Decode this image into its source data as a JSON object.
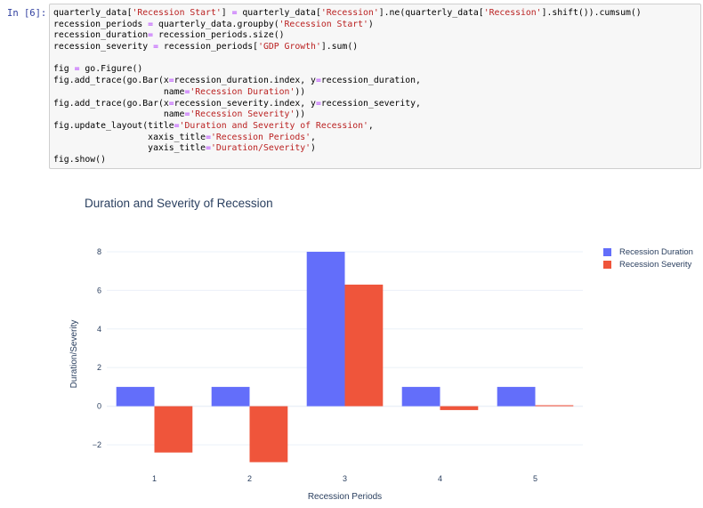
{
  "cell": {
    "prompt": "In [6]:",
    "code_lines": [
      [
        {
          "t": "quarterly_data["
        },
        {
          "t": "'Recession Start'",
          "c": "str"
        },
        {
          "t": "] "
        },
        {
          "t": "=",
          "c": "op"
        },
        {
          "t": " quarterly_data["
        },
        {
          "t": "'Recession'",
          "c": "str"
        },
        {
          "t": "].ne(quarterly_data["
        },
        {
          "t": "'Recession'",
          "c": "str"
        },
        {
          "t": "].shift()).cumsum()"
        }
      ],
      [
        {
          "t": "recession_periods "
        },
        {
          "t": "=",
          "c": "op"
        },
        {
          "t": " quarterly_data.groupby("
        },
        {
          "t": "'Recession Start'",
          "c": "str"
        },
        {
          "t": ")"
        }
      ],
      [
        {
          "t": "recession_duration"
        },
        {
          "t": "=",
          "c": "op"
        },
        {
          "t": " recession_periods.size()"
        }
      ],
      [
        {
          "t": "recession_severity "
        },
        {
          "t": "=",
          "c": "op"
        },
        {
          "t": " recession_periods["
        },
        {
          "t": "'GDP Growth'",
          "c": "str"
        },
        {
          "t": "].sum()"
        }
      ],
      [
        {
          "t": ""
        }
      ],
      [
        {
          "t": "fig "
        },
        {
          "t": "=",
          "c": "op"
        },
        {
          "t": " go.Figure()"
        }
      ],
      [
        {
          "t": "fig.add_trace(go.Bar(x"
        },
        {
          "t": "=",
          "c": "op"
        },
        {
          "t": "recession_duration.index, y"
        },
        {
          "t": "=",
          "c": "op"
        },
        {
          "t": "recession_duration,"
        }
      ],
      [
        {
          "t": "                     name"
        },
        {
          "t": "=",
          "c": "op"
        },
        {
          "t": "'Recession Duration'",
          "c": "str"
        },
        {
          "t": "))"
        }
      ],
      [
        {
          "t": "fig.add_trace(go.Bar(x"
        },
        {
          "t": "=",
          "c": "op"
        },
        {
          "t": "recession_severity.index, y"
        },
        {
          "t": "=",
          "c": "op"
        },
        {
          "t": "recession_severity,"
        }
      ],
      [
        {
          "t": "                     name"
        },
        {
          "t": "=",
          "c": "op"
        },
        {
          "t": "'Recession Severity'",
          "c": "str"
        },
        {
          "t": "))"
        }
      ],
      [
        {
          "t": "fig.update_layout(title"
        },
        {
          "t": "=",
          "c": "op"
        },
        {
          "t": "'Duration and Severity of Recession'",
          "c": "str"
        },
        {
          "t": ","
        }
      ],
      [
        {
          "t": "                  xaxis_title"
        },
        {
          "t": "=",
          "c": "op"
        },
        {
          "t": "'Recession Periods'",
          "c": "str"
        },
        {
          "t": ","
        }
      ],
      [
        {
          "t": "                  yaxis_title"
        },
        {
          "t": "=",
          "c": "op"
        },
        {
          "t": "'Duration/Severity'",
          "c": "str"
        },
        {
          "t": ")"
        }
      ],
      [
        {
          "t": "fig.show()"
        }
      ]
    ]
  },
  "colors": {
    "duration": "#636efa",
    "severity": "#ef553b",
    "grid": "#ebf0f8",
    "zero": "#ebf0f8"
  },
  "chart_data": {
    "type": "bar",
    "title": "Duration and Severity of Recession",
    "xlabel": "Recession Periods",
    "ylabel": "Duration/Severity",
    "categories": [
      "1",
      "2",
      "3",
      "4",
      "5"
    ],
    "series": [
      {
        "name": "Recession Duration",
        "values": [
          1,
          1,
          8,
          1,
          1
        ]
      },
      {
        "name": "Recession Severity",
        "values": [
          -2.4,
          -2.9,
          6.3,
          -0.2,
          0.05
        ]
      }
    ],
    "yticks": [
      -2,
      0,
      2,
      4,
      6,
      8
    ],
    "ylim": [
      -3.2,
      8.6
    ],
    "legend_position": "top-right",
    "grid": true
  }
}
